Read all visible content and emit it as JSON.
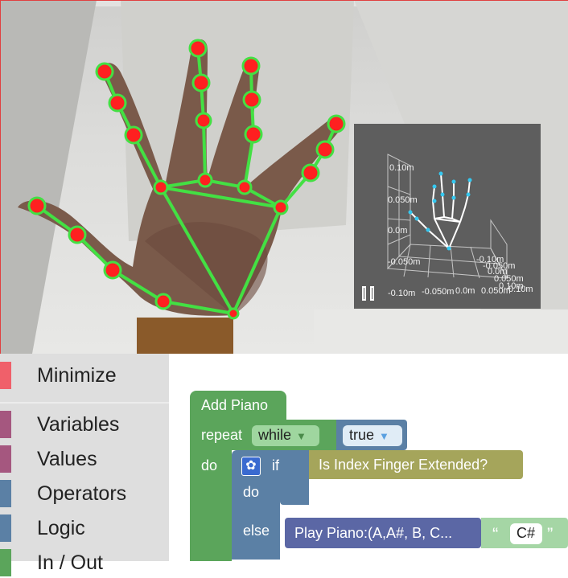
{
  "inset_3d": {
    "axis_labels": [
      "0.10m",
      "0.050m",
      "0.0m",
      "-0.050m",
      "-0.10m",
      "-0.050m",
      "0.0m",
      "0.050m",
      "0.10m",
      "-0.10m",
      "-0.050m",
      "0.0m",
      "0.050m",
      "0.10m"
    ]
  },
  "toolbox": {
    "categories": [
      {
        "label": "Minimize",
        "color": "#f0606a"
      },
      {
        "label": "Variables",
        "color": "#a5577f"
      },
      {
        "label": "Values",
        "color": "#a5577f"
      },
      {
        "label": "Operators",
        "color": "#5b80a5"
      },
      {
        "label": "Logic",
        "color": "#5b80a5"
      },
      {
        "label": "In / Out",
        "color": "#5ba55b"
      }
    ]
  },
  "workspace": {
    "add_piano_label": "Add Piano",
    "repeat_label": "repeat",
    "while_option": "while",
    "true_value": "true",
    "do_label": "do",
    "if_label": "if",
    "condition_label": "Is Index Finger Extended?",
    "inner_do_label": "do",
    "else_label": "else",
    "play_piano_label": "Play Piano:(A,A#, B, C...",
    "note_value": "C#",
    "quote_open": "“",
    "quote_close": "”",
    "gear_icon": "gear-icon",
    "colors": {
      "loop": "#5ba55b",
      "logic": "#5b80a5",
      "action": "#5b67a5",
      "condition": "#a5a55b",
      "text": "#a5d6a5"
    }
  }
}
